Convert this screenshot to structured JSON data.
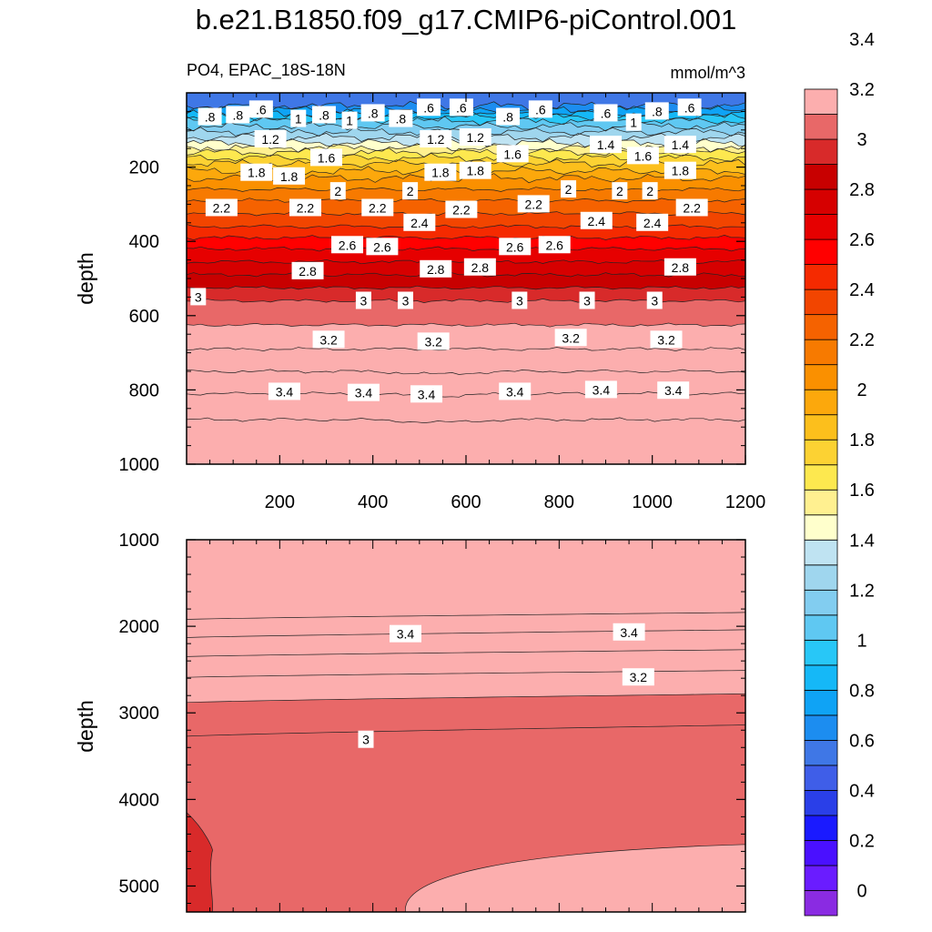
{
  "title": "b.e21.B1850.f09_g17.CMIP6-piControl.001",
  "colors": {
    "levels": [
      "#8a2be2",
      "#6a1cff",
      "#4a10ff",
      "#1a1aff",
      "#2a3fe8",
      "#3f5ee8",
      "#3f77e6",
      "#1c8df0",
      "#0fa3f5",
      "#15b8f7",
      "#28c7f7",
      "#5fc8f2",
      "#82cdf0",
      "#9fd6ee",
      "#bfe3f2",
      "#ffffcc",
      "#fff090",
      "#fde84f",
      "#fcd233",
      "#fcbf1c",
      "#fca80c",
      "#fa9000",
      "#f77a00",
      "#f56200",
      "#f24500",
      "#f52a00",
      "#ff0000",
      "#e60000",
      "#d60000",
      "#c80000",
      "#d82a2a",
      "#e86868",
      "#fcaeae"
    ]
  },
  "colorbar": {
    "labels": [
      "0",
      "0.2",
      "0.4",
      "0.6",
      "0.8",
      "1",
      "1.2",
      "1.4",
      "1.6",
      "1.8",
      "2",
      "2.2",
      "2.4",
      "2.6",
      "2.8",
      "3",
      "3.2",
      "3.4"
    ]
  },
  "chart_data": [
    {
      "type": "contour",
      "variable": "PO4",
      "region": "EPAC_18S-18N",
      "units": "mmol/m^3",
      "title_left": "PO4, EPAC_18S-18N",
      "title_right": "mmol/m^3",
      "ylabel": "depth",
      "xlabel": "",
      "xlim": [
        0,
        1200
      ],
      "ylim": [
        1000,
        0
      ],
      "x_ticks": [
        "200",
        "400",
        "600",
        "800",
        "1000",
        "1200"
      ],
      "y_ticks": [
        "200",
        "400",
        "600",
        "800",
        "1000"
      ],
      "contour_interval": 0.1,
      "contour_depths": [
        {
          "level": 0.6,
          "depth": 35
        },
        {
          "level": 0.8,
          "depth": 55
        },
        {
          "level": 1.0,
          "depth": 75
        },
        {
          "level": 1.2,
          "depth": 105
        },
        {
          "level": 1.4,
          "depth": 135
        },
        {
          "level": 1.6,
          "depth": 160
        },
        {
          "level": 1.8,
          "depth": 190
        },
        {
          "level": 2.0,
          "depth": 230
        },
        {
          "level": 2.2,
          "depth": 290
        },
        {
          "level": 2.4,
          "depth": 360
        },
        {
          "level": 2.6,
          "depth": 420
        },
        {
          "level": 2.8,
          "depth": 490
        },
        {
          "level": 3.0,
          "depth": 560
        },
        {
          "level": 3.2,
          "depth": 690
        },
        {
          "level": 3.4,
          "depth": 810
        }
      ],
      "contour_labels": [
        {
          "text": ".8",
          "x": 50,
          "y": 65
        },
        {
          "text": ".8",
          "x": 110,
          "y": 60
        },
        {
          "text": ".6",
          "x": 160,
          "y": 45
        },
        {
          "text": "1",
          "x": 240,
          "y": 70
        },
        {
          "text": ".8",
          "x": 295,
          "y": 60
        },
        {
          "text": "1",
          "x": 350,
          "y": 75
        },
        {
          "text": ".8",
          "x": 400,
          "y": 55
        },
        {
          "text": ".8",
          "x": 460,
          "y": 70
        },
        {
          "text": ".6",
          "x": 520,
          "y": 40
        },
        {
          "text": ".6",
          "x": 590,
          "y": 40
        },
        {
          "text": ".8",
          "x": 690,
          "y": 65
        },
        {
          "text": ".6",
          "x": 760,
          "y": 45
        },
        {
          "text": ".6",
          "x": 900,
          "y": 55
        },
        {
          "text": "1",
          "x": 960,
          "y": 80
        },
        {
          "text": ".8",
          "x": 1010,
          "y": 50
        },
        {
          "text": ".6",
          "x": 1080,
          "y": 40
        },
        {
          "text": "1.2",
          "x": 180,
          "y": 125
        },
        {
          "text": "1.2",
          "x": 535,
          "y": 125
        },
        {
          "text": "1.2",
          "x": 620,
          "y": 120
        },
        {
          "text": "1.4",
          "x": 900,
          "y": 140
        },
        {
          "text": "1.4",
          "x": 1060,
          "y": 140
        },
        {
          "text": "1.6",
          "x": 300,
          "y": 175
        },
        {
          "text": "1.6",
          "x": 700,
          "y": 165
        },
        {
          "text": "1.6",
          "x": 980,
          "y": 170
        },
        {
          "text": "1.8",
          "x": 150,
          "y": 215
        },
        {
          "text": "1.8",
          "x": 220,
          "y": 225
        },
        {
          "text": "1.8",
          "x": 545,
          "y": 215
        },
        {
          "text": "1.8",
          "x": 620,
          "y": 210
        },
        {
          "text": "1.8",
          "x": 1060,
          "y": 210
        },
        {
          "text": "2",
          "x": 325,
          "y": 265
        },
        {
          "text": "2",
          "x": 480,
          "y": 265
        },
        {
          "text": "2",
          "x": 820,
          "y": 260
        },
        {
          "text": "2",
          "x": 930,
          "y": 265
        },
        {
          "text": "2",
          "x": 995,
          "y": 265
        },
        {
          "text": "2.2",
          "x": 75,
          "y": 310
        },
        {
          "text": "2.2",
          "x": 255,
          "y": 310
        },
        {
          "text": "2.2",
          "x": 410,
          "y": 310
        },
        {
          "text": "2.2",
          "x": 590,
          "y": 315
        },
        {
          "text": "2.2",
          "x": 745,
          "y": 300
        },
        {
          "text": "2.2",
          "x": 1085,
          "y": 310
        },
        {
          "text": "2.4",
          "x": 500,
          "y": 350
        },
        {
          "text": "2.4",
          "x": 880,
          "y": 345
        },
        {
          "text": "2.4",
          "x": 1000,
          "y": 350
        },
        {
          "text": "2.6",
          "x": 345,
          "y": 410
        },
        {
          "text": "2.6",
          "x": 420,
          "y": 415
        },
        {
          "text": "2.6",
          "x": 705,
          "y": 415
        },
        {
          "text": "2.6",
          "x": 790,
          "y": 410
        },
        {
          "text": "2.8",
          "x": 260,
          "y": 480
        },
        {
          "text": "2.8",
          "x": 535,
          "y": 475
        },
        {
          "text": "2.8",
          "x": 630,
          "y": 470
        },
        {
          "text": "2.8",
          "x": 1060,
          "y": 470
        },
        {
          "text": "3",
          "x": 25,
          "y": 550
        },
        {
          "text": "3",
          "x": 380,
          "y": 560
        },
        {
          "text": "3",
          "x": 470,
          "y": 560
        },
        {
          "text": "3",
          "x": 715,
          "y": 560
        },
        {
          "text": "3",
          "x": 860,
          "y": 560
        },
        {
          "text": "3",
          "x": 1005,
          "y": 560
        },
        {
          "text": "3.2",
          "x": 305,
          "y": 665
        },
        {
          "text": "3.2",
          "x": 530,
          "y": 670
        },
        {
          "text": "3.2",
          "x": 825,
          "y": 660
        },
        {
          "text": "3.2",
          "x": 1030,
          "y": 665
        },
        {
          "text": "3.4",
          "x": 210,
          "y": 805
        },
        {
          "text": "3.4",
          "x": 380,
          "y": 808
        },
        {
          "text": "3.4",
          "x": 515,
          "y": 812
        },
        {
          "text": "3.4",
          "x": 705,
          "y": 805
        },
        {
          "text": "3.4",
          "x": 890,
          "y": 800
        },
        {
          "text": "3.4",
          "x": 1045,
          "y": 802
        }
      ]
    },
    {
      "type": "contour",
      "variable": "PO4",
      "ylabel": "depth",
      "xlabel": "",
      "xlim": [
        0,
        1200
      ],
      "ylim": [
        5300,
        1000
      ],
      "y_ticks": [
        "1000",
        "2000",
        "3000",
        "4000",
        "5000"
      ],
      "contour_lines": [
        {
          "level": 3.5,
          "depth_left": 1920,
          "depth_right": 1840
        },
        {
          "level": 3.4,
          "depth_left": 2130,
          "depth_right": 2040
        },
        {
          "level": 3.3,
          "depth_left": 2350,
          "depth_right": 2270
        },
        {
          "level": 3.2,
          "depth_left": 2590,
          "depth_right": 2510
        },
        {
          "level": 3.1,
          "depth_left": 2880,
          "depth_right": 2780
        },
        {
          "level": 3.0,
          "depth_left": 3270,
          "depth_right": 3140
        }
      ],
      "contour_labels": [
        {
          "text": "3.4",
          "x": 470,
          "y": 2090
        },
        {
          "text": "3.4",
          "x": 950,
          "y": 2070
        },
        {
          "text": "3.2",
          "x": 970,
          "y": 2590
        },
        {
          "text": "3",
          "x": 385,
          "y": 3310
        }
      ]
    }
  ]
}
